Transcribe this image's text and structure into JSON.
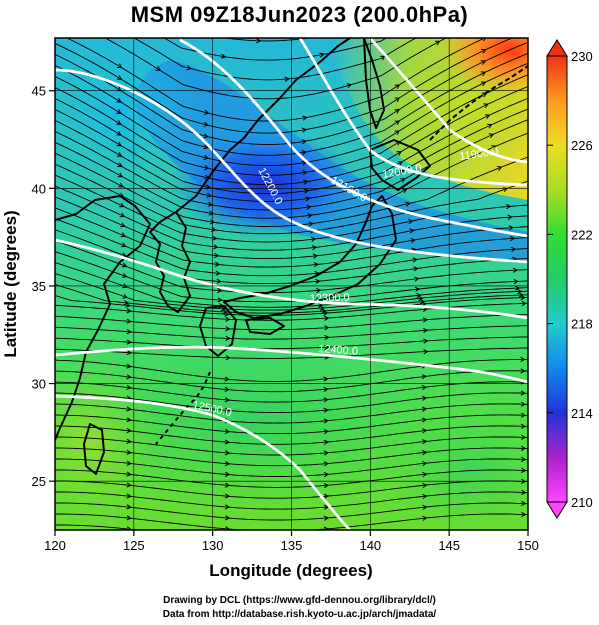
{
  "title": "MSM 09Z18Jun2023 (200.0hPa)",
  "x_axis": {
    "label": "Longitude (degrees)",
    "ticks": [
      "120",
      "125",
      "130",
      "135",
      "140",
      "145",
      "150"
    ]
  },
  "y_axis": {
    "label": "Latitude (degrees)",
    "ticks": [
      "25",
      "30",
      "35",
      "40",
      "45"
    ]
  },
  "colorbar": {
    "ticks": [
      "210",
      "214",
      "218",
      "222",
      "226",
      "230"
    ],
    "colors": [
      "#ff44ff",
      "#aa22cc",
      "#2233dd",
      "#1188ee",
      "#22cccc",
      "#22cc66",
      "#33dd33",
      "#aadd22",
      "#eedd22",
      "#ff9922",
      "#ee3311"
    ]
  },
  "contour_labels": [
    "12200.0",
    "12100.0",
    "12000.0",
    "11900.0",
    "12300.0",
    "12400.0",
    "12500.0"
  ],
  "credits": {
    "line1": "Drawing by DCL (https://www.gfd-dennou.org/library/dcl/)",
    "line2": "Data from http://database.rish.kyoto-u.ac.jp/arch/jmadata/"
  },
  "chart_data": {
    "type": "heatmap",
    "title": "MSM 09Z18Jun2023 (200.0hPa)",
    "xlabel": "Longitude (degrees)",
    "ylabel": "Latitude (degrees)",
    "xlim": [
      120,
      150
    ],
    "ylim": [
      22.5,
      47.7
    ],
    "x_ticks": [
      120,
      125,
      130,
      135,
      140,
      145,
      150
    ],
    "y_ticks": [
      25,
      30,
      35,
      40,
      45
    ],
    "colorbar_range": [
      210,
      230
    ],
    "shaded_field_samples": [
      {
        "lon": 148,
        "lat": 47,
        "value": 229
      },
      {
        "lon": 142,
        "lat": 45,
        "value": 224
      },
      {
        "lon": 132,
        "lat": 41,
        "value": 215
      },
      {
        "lon": 136,
        "lat": 39,
        "value": 216
      },
      {
        "lon": 124,
        "lat": 44,
        "value": 218
      },
      {
        "lon": 125,
        "lat": 36,
        "value": 221
      },
      {
        "lon": 138,
        "lat": 30,
        "value": 222
      },
      {
        "lon": 122,
        "lat": 27,
        "value": 223
      },
      {
        "lon": 145,
        "lat": 25,
        "value": 221
      }
    ],
    "contours": [
      {
        "label": "12000.0",
        "value": 12000
      },
      {
        "label": "12100.0",
        "value": 12100
      },
      {
        "label": "12200.0",
        "value": 12200
      },
      {
        "label": "12300.0",
        "value": 12300
      },
      {
        "label": "12400.0",
        "value": 12400
      },
      {
        "label": "12500.0",
        "value": 12500
      },
      {
        "label": "11900.0",
        "value": 11900
      }
    ],
    "grid": true
  }
}
